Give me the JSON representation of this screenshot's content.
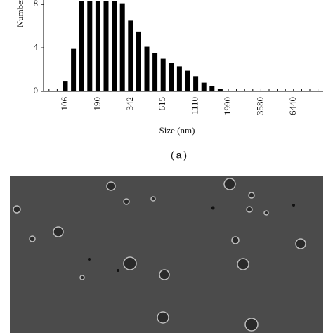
{
  "chart_data": {
    "type": "bar",
    "y_label": "Number",
    "x_label": "Size (nm)",
    "caption": "(a)",
    "categories": [
      null,
      null,
      "106",
      null,
      null,
      null,
      "190",
      null,
      null,
      null,
      "342",
      null,
      null,
      null,
      "615",
      null,
      null,
      null,
      "1110",
      null,
      null,
      null,
      "1990",
      null,
      null,
      null,
      "3580",
      null,
      null,
      null,
      "6440",
      null,
      null,
      null
    ],
    "values": [
      0,
      0,
      0.9,
      3.9,
      8.3,
      8.3,
      8.3,
      8.3,
      8.3,
      8.1,
      6.5,
      5.5,
      4.1,
      3.5,
      3.0,
      2.6,
      2.3,
      1.9,
      1.4,
      0.8,
      0.5,
      0.2,
      0,
      0,
      0,
      0,
      0,
      0,
      0,
      0,
      0,
      0,
      0,
      0
    ],
    "color": "#000000",
    "ylim": [
      0,
      8.4
    ],
    "yticks": [
      0,
      4,
      8
    ]
  }
}
